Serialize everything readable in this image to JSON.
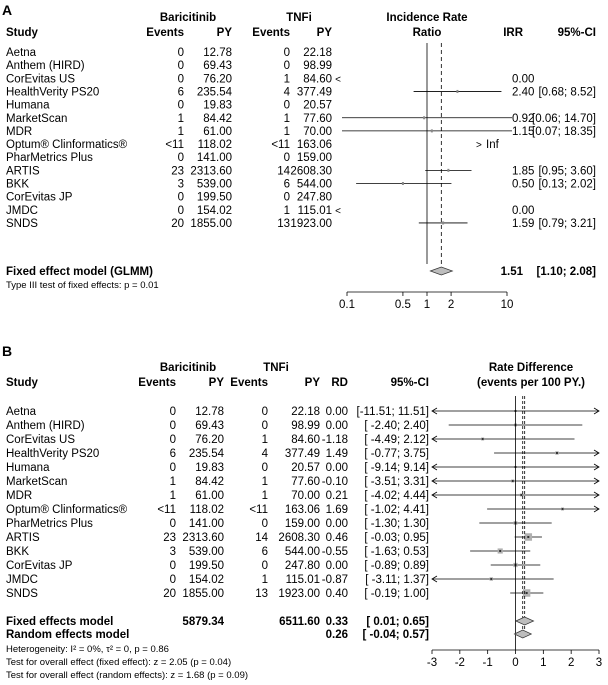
{
  "panels": [
    {
      "label": "A",
      "headers": {
        "group1": "Baricitinib",
        "group2": "TNFi",
        "study": "Study",
        "events1": "Events",
        "py1": "PY",
        "events2": "Events",
        "py2": "PY",
        "effect_title_line1": "Incidence Rate",
        "effect_title_line2": "Ratio",
        "est_col": "IRR",
        "ci_col": "95%-CI"
      },
      "summary": [
        {
          "label": "Fixed effect model (GLMM)",
          "est": "1.51",
          "ci": "[1.10; 2.08]"
        }
      ],
      "footnotes": [
        "Type III test of fixed effects: p = 0.01"
      ]
    },
    {
      "label": "B",
      "headers": {
        "group1": "Baricitinib",
        "group2": "TNFi",
        "study": "Study",
        "events1": "Events",
        "py1": "PY",
        "events2": "Events",
        "py2": "PY",
        "est_col": "RD",
        "ci_col": "95%-CI",
        "effect_title_line1": "Rate Difference",
        "effect_title_line2": "(events per 100 PY.)"
      },
      "summary": [
        {
          "label": "Fixed effects model",
          "py1": "5879.34",
          "py2": "6511.60",
          "est": "0.33",
          "ci": "[ 0.01; 0.65]"
        },
        {
          "label": "Random effects model",
          "py1": "",
          "py2": "",
          "est": "0.26",
          "ci": "[ -0.04; 0.57]"
        }
      ],
      "footnotes": [
        "Heterogeneity: I² = 0%, τ² = 0, p = 0.86",
        "Test for overall effect (fixed effect): z = 2.05 (p = 0.04)",
        "Test for overall effect (random effects): z = 1.68 (p = 0.09)"
      ]
    }
  ],
  "chart_data": [
    {
      "type": "forest",
      "panel": "A",
      "measure": "Incidence Rate Ratio",
      "scale": "log",
      "xlim": [
        0.1,
        10
      ],
      "xticks": [
        0.1,
        0.5,
        1,
        2,
        10
      ],
      "xtick_labels": [
        "0.1",
        "0.5",
        "1",
        "2",
        "10"
      ],
      "reference_line": 1,
      "pooled_line": 1.51,
      "studies": [
        {
          "study": "Aetna",
          "events1": "0",
          "py1": "12.78",
          "events2": "0",
          "py2": "22.18",
          "est_text": "",
          "ci_text": "",
          "est": null,
          "lo": null,
          "hi": null
        },
        {
          "study": "Anthem (HIRD)",
          "events1": "0",
          "py1": "69.43",
          "events2": "0",
          "py2": "98.99",
          "est_text": "",
          "ci_text": "",
          "est": null,
          "lo": null,
          "hi": null
        },
        {
          "study": "CorEvitas US",
          "events1": "0",
          "py1": "76.20",
          "events2": "1",
          "py2": "84.60",
          "est_text": "0.00",
          "ci_text": "",
          "est": 0,
          "lo": null,
          "hi": null,
          "arrow": "left"
        },
        {
          "study": "HealthVerity PS20",
          "events1": "6",
          "py1": "235.54",
          "events2": "4",
          "py2": "377.49",
          "est_text": "2.40",
          "ci_text": "[0.68; 8.52]",
          "est": 2.4,
          "lo": 0.68,
          "hi": 8.52
        },
        {
          "study": "Humana",
          "events1": "0",
          "py1": "19.83",
          "events2": "0",
          "py2": "20.57",
          "est_text": "",
          "ci_text": "",
          "est": null,
          "lo": null,
          "hi": null
        },
        {
          "study": "MarketScan",
          "events1": "1",
          "py1": "84.42",
          "events2": "1",
          "py2": "77.60",
          "est_text": "0.92",
          "ci_text": "[0.06; 14.70]",
          "est": 0.92,
          "lo": 0.06,
          "hi": 14.7
        },
        {
          "study": "MDR",
          "events1": "1",
          "py1": "61.00",
          "events2": "1",
          "py2": "70.00",
          "est_text": "1.15",
          "ci_text": "[0.07; 18.35]",
          "est": 1.15,
          "lo": 0.07,
          "hi": 18.35
        },
        {
          "study": "Optum® Clinformatics®",
          "events1": "<11",
          "py1": "118.02",
          "events2": "<11",
          "py2": "163.06",
          "est_text": "Inf",
          "ci_text": "",
          "est": null,
          "lo": null,
          "hi": null,
          "arrow": "right"
        },
        {
          "study": "PharMetrics Plus",
          "events1": "0",
          "py1": "141.00",
          "events2": "0",
          "py2": "159.00",
          "est_text": "",
          "ci_text": "",
          "est": null,
          "lo": null,
          "hi": null
        },
        {
          "study": "ARTIS",
          "events1": "23",
          "py1": "2313.60",
          "events2": "14",
          "py2": "2608.30",
          "est_text": "1.85",
          "ci_text": "[0.95; 3.60]",
          "est": 1.85,
          "lo": 0.95,
          "hi": 3.6
        },
        {
          "study": "BKK",
          "events1": "3",
          "py1": "539.00",
          "events2": "6",
          "py2": "544.00",
          "est_text": "0.50",
          "ci_text": "[0.13; 2.02]",
          "est": 0.5,
          "lo": 0.13,
          "hi": 2.02
        },
        {
          "study": "CorEvitas JP",
          "events1": "0",
          "py1": "199.50",
          "events2": "0",
          "py2": "247.80",
          "est_text": "",
          "ci_text": "",
          "est": null,
          "lo": null,
          "hi": null
        },
        {
          "study": "JMDC",
          "events1": "0",
          "py1": "154.02",
          "events2": "1",
          "py2": "115.01",
          "est_text": "0.00",
          "ci_text": "",
          "est": 0,
          "lo": null,
          "hi": null,
          "arrow": "left"
        },
        {
          "study": "SNDS",
          "events1": "20",
          "py1": "1855.00",
          "events2": "13",
          "py2": "1923.00",
          "est_text": "1.59",
          "ci_text": "[0.79; 3.21]",
          "est": 1.59,
          "lo": 0.79,
          "hi": 3.21
        }
      ],
      "pooled": [
        {
          "name": "Fixed effect model (GLMM)",
          "est": 1.51,
          "lo": 1.1,
          "hi": 2.08
        }
      ]
    },
    {
      "type": "forest",
      "panel": "B",
      "measure": "Rate Difference (events per 100 PY.)",
      "scale": "linear",
      "xlim": [
        -3,
        3
      ],
      "xticks": [
        -3,
        -2,
        -1,
        0,
        1,
        2,
        3
      ],
      "xtick_labels": [
        "-3",
        "-2",
        "-1",
        "0",
        "1",
        "2",
        "3"
      ],
      "reference_line": 0,
      "pooled_lines": [
        0.33,
        0.26
      ],
      "studies": [
        {
          "study": "Aetna",
          "events1": "0",
          "py1": "12.78",
          "events2": "0",
          "py2": "22.18",
          "est_text": "0.00",
          "ci_text": "[-11.51; 11.51]",
          "est": 0.0,
          "lo": -11.51,
          "hi": 11.51,
          "weight": 0.0
        },
        {
          "study": "Anthem (HIRD)",
          "events1": "0",
          "py1": "69.43",
          "events2": "0",
          "py2": "98.99",
          "est_text": "0.00",
          "ci_text": "[ -2.40; 2.40]",
          "est": 0.0,
          "lo": -2.4,
          "hi": 2.4,
          "weight": 0.01
        },
        {
          "study": "CorEvitas US",
          "events1": "0",
          "py1": "76.20",
          "events2": "1",
          "py2": "84.60",
          "est_text": "-1.18",
          "ci_text": "[ -4.49; 2.12]",
          "est": -1.18,
          "lo": -4.49,
          "hi": 2.12,
          "weight": 0.01
        },
        {
          "study": "HealthVerity PS20",
          "events1": "6",
          "py1": "235.54",
          "events2": "4",
          "py2": "377.49",
          "est_text": "1.49",
          "ci_text": "[ -0.77; 3.75]",
          "est": 1.49,
          "lo": -0.77,
          "hi": 3.75,
          "weight": 0.02
        },
        {
          "study": "Humana",
          "events1": "0",
          "py1": "19.83",
          "events2": "0",
          "py2": "20.57",
          "est_text": "0.00",
          "ci_text": "[ -9.14; 9.14]",
          "est": 0.0,
          "lo": -9.14,
          "hi": 9.14,
          "weight": 0.0
        },
        {
          "study": "MarketScan",
          "events1": "1",
          "py1": "84.42",
          "events2": "1",
          "py2": "77.60",
          "est_text": "-0.10",
          "ci_text": "[ -3.51; 3.31]",
          "est": -0.1,
          "lo": -3.51,
          "hi": 3.31,
          "weight": 0.01
        },
        {
          "study": "MDR",
          "events1": "1",
          "py1": "61.00",
          "events2": "1",
          "py2": "70.00",
          "est_text": "0.21",
          "ci_text": "[ -4.02; 4.44]",
          "est": 0.21,
          "lo": -4.02,
          "hi": 4.44,
          "weight": 0.01
        },
        {
          "study": "Optum® Clinformatics®",
          "events1": "<11",
          "py1": "118.02",
          "events2": "<11",
          "py2": "163.06",
          "est_text": "1.69",
          "ci_text": "[ -1.02; 4.41]",
          "est": 1.69,
          "lo": -1.02,
          "hi": 4.41,
          "weight": 0.01
        },
        {
          "study": "PharMetrics Plus",
          "events1": "0",
          "py1": "141.00",
          "events2": "0",
          "py2": "159.00",
          "est_text": "0.00",
          "ci_text": "[ -1.30; 1.30]",
          "est": 0.0,
          "lo": -1.3,
          "hi": 1.3,
          "weight": 0.03
        },
        {
          "study": "ARTIS",
          "events1": "23",
          "py1": "2313.60",
          "events2": "14",
          "py2": "2608.30",
          "est_text": "0.46",
          "ci_text": "[ -0.03; 0.95]",
          "est": 0.46,
          "lo": -0.03,
          "hi": 0.95,
          "weight": 0.3
        },
        {
          "study": "BKK",
          "events1": "3",
          "py1": "539.00",
          "events2": "6",
          "py2": "544.00",
          "est_text": "-0.55",
          "ci_text": "[ -1.63; 0.53]",
          "est": -0.55,
          "lo": -1.63,
          "hi": 0.53,
          "weight": 0.1
        },
        {
          "study": "CorEvitas JP",
          "events1": "0",
          "py1": "199.50",
          "events2": "0",
          "py2": "247.80",
          "est_text": "0.00",
          "ci_text": "[ -0.89; 0.89]",
          "est": 0.0,
          "lo": -0.89,
          "hi": 0.89,
          "weight": 0.05
        },
        {
          "study": "JMDC",
          "events1": "0",
          "py1": "154.02",
          "events2": "1",
          "py2": "115.01",
          "est_text": "-0.87",
          "ci_text": "[ -3.11; 1.37]",
          "est": -0.87,
          "lo": -3.11,
          "hi": 1.37,
          "weight": 0.02
        },
        {
          "study": "SNDS",
          "events1": "20",
          "py1": "1855.00",
          "events2": "13",
          "py2": "1923.00",
          "est_text": "0.40",
          "ci_text": "[ -0.19; 1.00]",
          "est": 0.4,
          "lo": -0.19,
          "hi": 1.0,
          "weight": 0.3
        }
      ],
      "pooled": [
        {
          "name": "Fixed effects model",
          "est": 0.33,
          "lo": 0.01,
          "hi": 0.65
        },
        {
          "name": "Random effects model",
          "est": 0.26,
          "lo": -0.04,
          "hi": 0.57
        }
      ]
    }
  ]
}
